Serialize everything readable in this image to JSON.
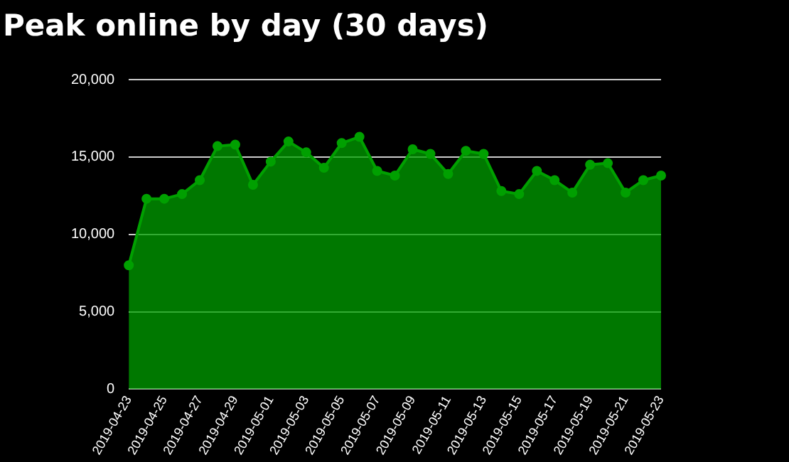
{
  "chart_data": {
    "type": "area",
    "title": "Peak online by day (30 days)",
    "categories": [
      "2019-04-23",
      null,
      "2019-04-25",
      null,
      "2019-04-27",
      null,
      "2019-04-29",
      null,
      "2019-05-01",
      null,
      "2019-05-03",
      null,
      "2019-05-05",
      null,
      "2019-05-07",
      null,
      "2019-05-09",
      null,
      "2019-05-11",
      null,
      "2019-05-13",
      null,
      "2019-05-15",
      null,
      "2019-05-17",
      null,
      "2019-05-19",
      null,
      "2019-05-21",
      null,
      "2019-05-23"
    ],
    "series": [
      {
        "color": "#00a000",
        "values": [
          8000,
          12300,
          12300,
          12600,
          13500,
          15700,
          15800,
          13200,
          14700,
          16000,
          15300,
          14300,
          15900,
          16300,
          14100,
          13800,
          15500,
          15200,
          13900,
          15400,
          15200,
          12800,
          12600,
          14100,
          13500,
          12700,
          14500,
          14600,
          12700,
          13500,
          13800
        ]
      }
    ],
    "ylim": [
      0,
      20000
    ],
    "yticks": [
      0,
      {
        "value": 5000,
        "label": "5,000"
      },
      {
        "value": 10000,
        "label": "10,000"
      },
      {
        "value": 15000,
        "label": "15,000"
      },
      {
        "value": 20000,
        "label": "20,000"
      }
    ],
    "grid": "y",
    "legend": false,
    "marker": "circle"
  }
}
